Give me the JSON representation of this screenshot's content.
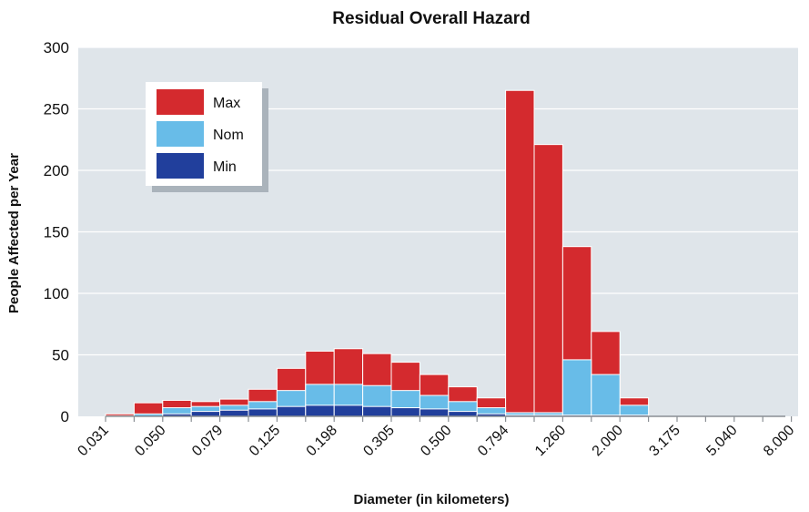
{
  "chart_data": {
    "type": "bar",
    "stacked": "overlay",
    "title": "Residual Overall Hazard",
    "xlabel": "Diameter (in kilometers)",
    "ylabel": "People Affected per Year",
    "ylim": [
      0,
      300
    ],
    "yticks": [
      0,
      50,
      100,
      150,
      200,
      250,
      300
    ],
    "xtick_labels": [
      "0.031",
      "0.050",
      "0.079",
      "0.125",
      "0.198",
      "0.305",
      "0.500",
      "0.794",
      "1.260",
      "2.000",
      "3.175",
      "5.040",
      "8.000"
    ],
    "grid": true,
    "legend_position": "top-left",
    "bins": 24,
    "series": [
      {
        "name": "Max",
        "color": "#d42a2e",
        "values": [
          2,
          11,
          13,
          12,
          14,
          22,
          39,
          53,
          55,
          51,
          44,
          34,
          24,
          15,
          265,
          221,
          138,
          69,
          15,
          0,
          0,
          0,
          0,
          0
        ]
      },
      {
        "name": "Nom",
        "color": "#68bce8",
        "values": [
          0.5,
          2,
          7,
          8,
          9,
          12,
          21,
          26,
          26,
          25,
          21,
          17,
          12,
          7,
          3,
          3,
          46,
          34,
          9,
          0,
          0,
          0,
          0,
          0
        ]
      },
      {
        "name": "Min",
        "color": "#213f9c",
        "values": [
          0,
          0,
          2,
          4,
          5,
          6,
          8,
          9,
          9,
          8,
          7,
          6,
          4,
          2,
          1,
          1,
          1,
          1,
          1,
          0,
          0,
          0,
          0,
          0
        ]
      }
    ]
  }
}
